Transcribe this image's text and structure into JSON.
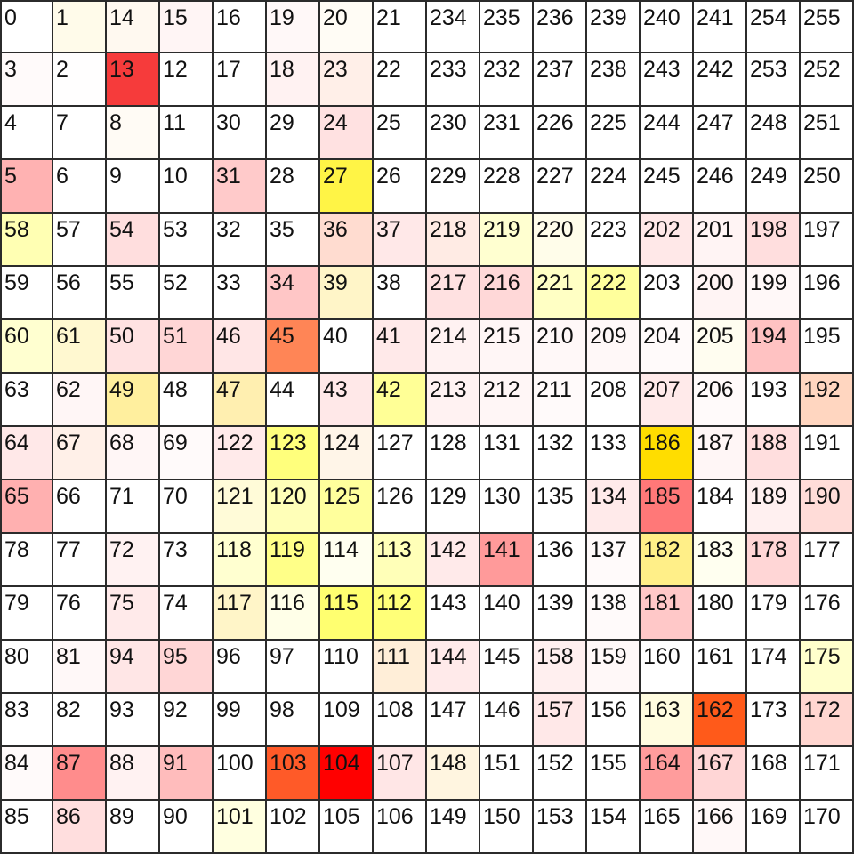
{
  "grid": {
    "rows": [
      [
        0,
        1,
        14,
        15,
        16,
        19,
        20,
        21,
        234,
        235,
        236,
        239,
        240,
        241,
        254,
        255
      ],
      [
        3,
        2,
        13,
        12,
        17,
        18,
        23,
        22,
        233,
        232,
        237,
        238,
        243,
        242,
        253,
        252
      ],
      [
        4,
        7,
        8,
        11,
        30,
        29,
        24,
        25,
        230,
        231,
        226,
        225,
        244,
        247,
        248,
        251
      ],
      [
        5,
        6,
        9,
        10,
        31,
        28,
        27,
        26,
        229,
        228,
        227,
        224,
        245,
        246,
        249,
        250
      ],
      [
        58,
        57,
        54,
        53,
        32,
        35,
        36,
        37,
        218,
        219,
        220,
        223,
        202,
        201,
        198,
        197
      ],
      [
        59,
        56,
        55,
        52,
        33,
        34,
        39,
        38,
        217,
        216,
        221,
        222,
        203,
        200,
        199,
        196
      ],
      [
        60,
        61,
        50,
        51,
        46,
        45,
        40,
        41,
        214,
        215,
        210,
        209,
        204,
        205,
        194,
        195
      ],
      [
        63,
        62,
        49,
        48,
        47,
        44,
        43,
        42,
        213,
        212,
        211,
        208,
        207,
        206,
        193,
        192
      ],
      [
        64,
        67,
        68,
        69,
        122,
        123,
        124,
        127,
        128,
        131,
        132,
        133,
        186,
        187,
        188,
        191
      ],
      [
        65,
        66,
        71,
        70,
        121,
        120,
        125,
        126,
        129,
        130,
        135,
        134,
        185,
        184,
        189,
        190
      ],
      [
        78,
        77,
        72,
        73,
        118,
        119,
        114,
        113,
        142,
        141,
        136,
        137,
        182,
        183,
        178,
        177
      ],
      [
        79,
        76,
        75,
        74,
        117,
        116,
        115,
        112,
        143,
        140,
        139,
        138,
        181,
        180,
        179,
        176
      ],
      [
        80,
        81,
        94,
        95,
        96,
        97,
        110,
        111,
        144,
        145,
        158,
        159,
        160,
        161,
        174,
        175
      ],
      [
        83,
        82,
        93,
        92,
        99,
        98,
        109,
        108,
        147,
        146,
        157,
        156,
        163,
        162,
        173,
        172
      ],
      [
        84,
        87,
        88,
        91,
        100,
        103,
        104,
        107,
        148,
        151,
        152,
        155,
        164,
        167,
        168,
        171
      ],
      [
        85,
        86,
        89,
        90,
        101,
        102,
        105,
        106,
        149,
        150,
        153,
        154,
        165,
        166,
        169,
        170
      ]
    ],
    "colors": [
      [
        "#ffffff",
        "#fffbea",
        "#fff9f0",
        "#fff5f5",
        "#ffffff",
        "#fff8f8",
        "#fffcf5",
        "#ffffff",
        "#ffffff",
        "#ffffff",
        "#ffffff",
        "#ffffff",
        "#ffffff",
        "#ffffff",
        "#ffffff",
        "#ffffff"
      ],
      [
        "#fffafa",
        "#fffefe",
        "#f63b3b",
        "#ffffff",
        "#ffffff",
        "#fff2f2",
        "#ffefe8",
        "#ffffff",
        "#ffffff",
        "#ffffff",
        "#ffffff",
        "#ffffff",
        "#ffffff",
        "#ffffff",
        "#ffffff",
        "#ffffff"
      ],
      [
        "#ffffff",
        "#ffffff",
        "#fffbf5",
        "#ffffff",
        "#ffffff",
        "#ffffff",
        "#ffe1e1",
        "#ffffff",
        "#ffffff",
        "#ffffff",
        "#ffffff",
        "#ffffff",
        "#ffffff",
        "#ffffff",
        "#ffffff",
        "#ffffff"
      ],
      [
        "#ffb2b2",
        "#ffffff",
        "#ffffff",
        "#ffffff",
        "#ffcaca",
        "#ffffff",
        "#fff446",
        "#ffffff",
        "#ffffff",
        "#ffffff",
        "#ffffff",
        "#ffffff",
        "#ffffff",
        "#ffffff",
        "#ffffff",
        "#ffffff"
      ],
      [
        "#ffffb3",
        "#ffffff",
        "#ffdede",
        "#ffffff",
        "#ffffff",
        "#ffffff",
        "#ffdcd0",
        "#ffe8e8",
        "#ffebe4",
        "#ffffd0",
        "#fffdea",
        "#ffffff",
        "#ffe8e8",
        "#fff4f4",
        "#ffdede",
        "#ffffff"
      ],
      [
        "#ffffff",
        "#ffffff",
        "#ffffff",
        "#ffffff",
        "#ffffff",
        "#ffc6c6",
        "#fff5c8",
        "#ffffff",
        "#ffe1e1",
        "#ffd8d8",
        "#ffffc4",
        "#ffff9c",
        "#ffffff",
        "#fff4f4",
        "#fff8f8",
        "#ffffff"
      ],
      [
        "#ffffd0",
        "#fff8d0",
        "#ffe2e2",
        "#ffd6d6",
        "#ffe6e6",
        "#ff8556",
        "#ffffff",
        "#ffe9e9",
        "#fff2f2",
        "#fff6f6",
        "#fff8f8",
        "#fff8f8",
        "#fffafa",
        "#fffdf0",
        "#ffc2c2",
        "#ffffff"
      ],
      [
        "#ffffff",
        "#fff6f6",
        "#ffef9e",
        "#ffffff",
        "#ffefb0",
        "#ffffff",
        "#ffe8e8",
        "#ffff96",
        "#fff2f2",
        "#fff6f6",
        "#fffafa",
        "#ffffff",
        "#ffeaea",
        "#fffafa",
        "#ffffff",
        "#ffd6c0"
      ],
      [
        "#ffe8e8",
        "#fff0e8",
        "#fff6f6",
        "#fffafa",
        "#ffeaea",
        "#ffff7c",
        "#fff5e8",
        "#ffffff",
        "#ffffff",
        "#ffffff",
        "#ffffff",
        "#ffffff",
        "#ffdd00",
        "#fff6f6",
        "#ffdede",
        "#ffffff"
      ],
      [
        "#ffb0b0",
        "#ffffff",
        "#ffffff",
        "#ffffff",
        "#fffbd8",
        "#ffffb8",
        "#ffff9c",
        "#ffffff",
        "#ffffff",
        "#ffffff",
        "#ffffff",
        "#ffeaea",
        "#ff7878",
        "#ffffff",
        "#fff0f0",
        "#ffdcd8"
      ],
      [
        "#ffffff",
        "#ffffff",
        "#fff2f2",
        "#ffffff",
        "#ffffd0",
        "#ffff88",
        "#fffff0",
        "#ffffb8",
        "#ffeaea",
        "#ff9a9a",
        "#ffffff",
        "#fffafa",
        "#ffef88",
        "#fffff0",
        "#ffd6d6",
        "#ffffff"
      ],
      [
        "#ffffff",
        "#ffffff",
        "#ffeaea",
        "#ffffff",
        "#fff5c8",
        "#ffffe8",
        "#ffff70",
        "#ffff78",
        "#ffffff",
        "#ffffff",
        "#ffffff",
        "#fffafa",
        "#ffc8c8",
        "#ffffff",
        "#ffffff",
        "#ffffff"
      ],
      [
        "#ffffff",
        "#fff8f8",
        "#ffe6e6",
        "#ffd6d6",
        "#ffffff",
        "#ffffff",
        "#ffffff",
        "#ffeed8",
        "#ffeaea",
        "#ffffff",
        "#ffefef",
        "#fff8f8",
        "#ffffff",
        "#ffffff",
        "#ffffff",
        "#ffffcc"
      ],
      [
        "#ffffff",
        "#ffffff",
        "#ffffff",
        "#ffffff",
        "#ffffff",
        "#ffffff",
        "#ffffff",
        "#ffffff",
        "#ffffff",
        "#ffffff",
        "#ffe8e8",
        "#ffffff",
        "#fffce0",
        "#ff5a1a",
        "#ffffff",
        "#ffd6d0"
      ],
      [
        "#fffafa",
        "#ff8c8c",
        "#fff2f2",
        "#ffbcbc",
        "#ffffff",
        "#ff5a28",
        "#ff0000",
        "#ffe6e6",
        "#fff5e0",
        "#ffffff",
        "#ffffff",
        "#ffffff",
        "#ff9c9c",
        "#ffd6d6",
        "#ffffff",
        "#ffffff"
      ],
      [
        "#ffffff",
        "#ffdede",
        "#ffffff",
        "#ffffff",
        "#ffffe0",
        "#ffffff",
        "#ffffff",
        "#ffffff",
        "#ffffff",
        "#ffffff",
        "#ffffff",
        "#ffffff",
        "#ffffff",
        "#fff8f8",
        "#ffffff",
        "#ffffff"
      ]
    ]
  }
}
